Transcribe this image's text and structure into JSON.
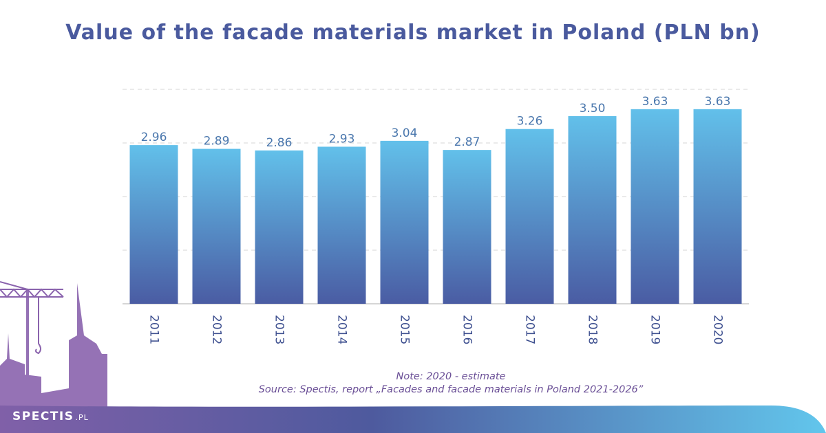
{
  "title": "Value of the facade materials market in Poland (PLN bn)",
  "chart_data": {
    "type": "bar",
    "title": "Value of the facade materials market in Poland (PLN bn)",
    "categories": [
      "2011",
      "2012",
      "2013",
      "2014",
      "2015",
      "2016",
      "2017",
      "2018",
      "2019",
      "2020"
    ],
    "values": [
      2.96,
      2.89,
      2.86,
      2.93,
      3.04,
      2.87,
      3.26,
      3.5,
      3.63,
      3.63
    ],
    "value_labels": [
      "2.96",
      "2.89",
      "2.86",
      "2.93",
      "3.04",
      "2.87",
      "3.26",
      "3.50",
      "3.63",
      "3.63"
    ],
    "xlabel": "",
    "ylabel": "",
    "ylim": [
      0,
      4
    ],
    "grid": true,
    "colors": {
      "bar_top": "#62c0ea",
      "bar_bottom": "#4a5ca3",
      "label": "#4a77ad"
    }
  },
  "notes": {
    "note": "Note: 2020 - estimate",
    "source": "Source: Spectis, report „Facades and facade materials in Poland 2021-2026”"
  },
  "brand": {
    "name": "SPECTIS",
    "suffix": ".PL"
  },
  "colors": {
    "title": "#4a5a9e",
    "note": "#6a4f96",
    "skyline": "#8a63ad",
    "footer_left": "#7e5aa6",
    "footer_right": "#62c3ea"
  }
}
